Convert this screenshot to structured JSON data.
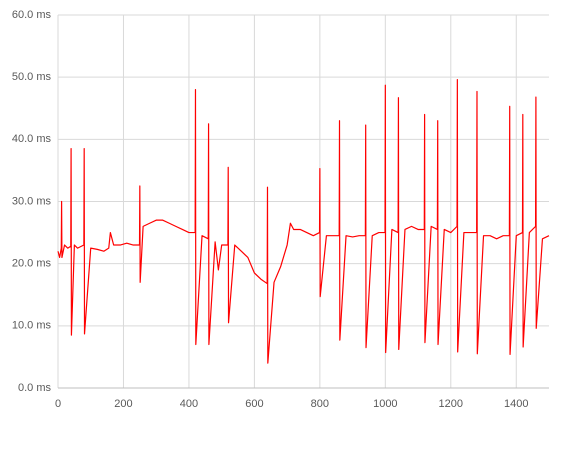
{
  "chart_data": {
    "type": "line",
    "x": [
      0,
      5,
      10,
      11,
      12,
      20,
      30,
      39,
      40,
      41,
      50,
      60,
      79,
      80,
      81,
      100,
      120,
      140,
      155,
      160,
      170,
      190,
      210,
      230,
      249,
      250,
      251,
      260,
      280,
      300,
      320,
      340,
      360,
      380,
      400,
      419,
      420,
      421,
      440,
      459,
      460,
      461,
      480,
      490,
      500,
      519,
      520,
      521,
      540,
      560,
      580,
      600,
      620,
      639,
      640,
      641,
      660,
      680,
      700,
      710,
      720,
      740,
      760,
      780,
      799,
      800,
      801,
      820,
      840,
      859,
      860,
      861,
      880,
      900,
      920,
      939,
      940,
      941,
      960,
      980,
      999,
      1000,
      1001,
      1020,
      1039,
      1040,
      1041,
      1060,
      1080,
      1100,
      1119,
      1120,
      1121,
      1140,
      1159,
      1160,
      1161,
      1180,
      1200,
      1219,
      1220,
      1221,
      1240,
      1260,
      1279,
      1280,
      1281,
      1300,
      1320,
      1340,
      1360,
      1379,
      1380,
      1381,
      1400,
      1419,
      1420,
      1421,
      1440,
      1459,
      1460,
      1461,
      1480,
      1500
    ],
    "values": [
      22,
      21,
      22.5,
      30,
      21,
      23,
      22.5,
      22.8,
      38.5,
      8.5,
      23,
      22.5,
      23,
      38.5,
      8.7,
      22.5,
      22.3,
      22,
      22.5,
      25,
      23,
      23,
      23.3,
      23,
      23,
      32.5,
      17,
      26,
      26.5,
      27,
      27,
      26.5,
      26,
      25.5,
      25,
      25,
      48,
      7,
      24.5,
      24,
      42.5,
      7,
      23.5,
      19,
      23,
      23,
      35.5,
      10.5,
      23,
      22,
      21,
      18.5,
      17.5,
      16.8,
      32.3,
      4,
      17,
      19.5,
      23,
      26.5,
      25.5,
      25.5,
      25,
      24.5,
      25,
      35.3,
      14.7,
      24.5,
      24.5,
      24.5,
      43,
      7.7,
      24.5,
      24.3,
      24.5,
      24.5,
      42.3,
      6.5,
      24.5,
      25,
      25,
      48.7,
      5.7,
      25.5,
      25,
      46.7,
      6.2,
      25.5,
      26,
      25.5,
      25.5,
      44,
      7.3,
      26,
      25.5,
      43,
      7,
      25.5,
      25,
      26,
      49.6,
      5.8,
      25,
      25,
      25,
      47.7,
      5.5,
      24.5,
      24.5,
      24,
      24.5,
      24.5,
      45.3,
      5.4,
      24.5,
      25,
      44,
      6.6,
      25,
      26,
      46.8,
      9.6,
      24,
      24.5
    ],
    "color": "#ff0000",
    "xlim": [
      0,
      1500
    ],
    "xticks": [
      0,
      200,
      400,
      600,
      800,
      1000,
      1200,
      1400
    ],
    "ylim": [
      0,
      60
    ],
    "yticks": [
      {
        "value": 0,
        "label": "0.0 ms"
      },
      {
        "value": 10,
        "label": "10.0 ms"
      },
      {
        "value": 20,
        "label": "20.0 ms"
      },
      {
        "value": 30,
        "label": "30.0 ms"
      },
      {
        "value": 40,
        "label": "40.0 ms"
      },
      {
        "value": 50,
        "label": "50.0 ms"
      },
      {
        "value": 60,
        "label": "60.0 ms"
      }
    ],
    "grid": true
  }
}
